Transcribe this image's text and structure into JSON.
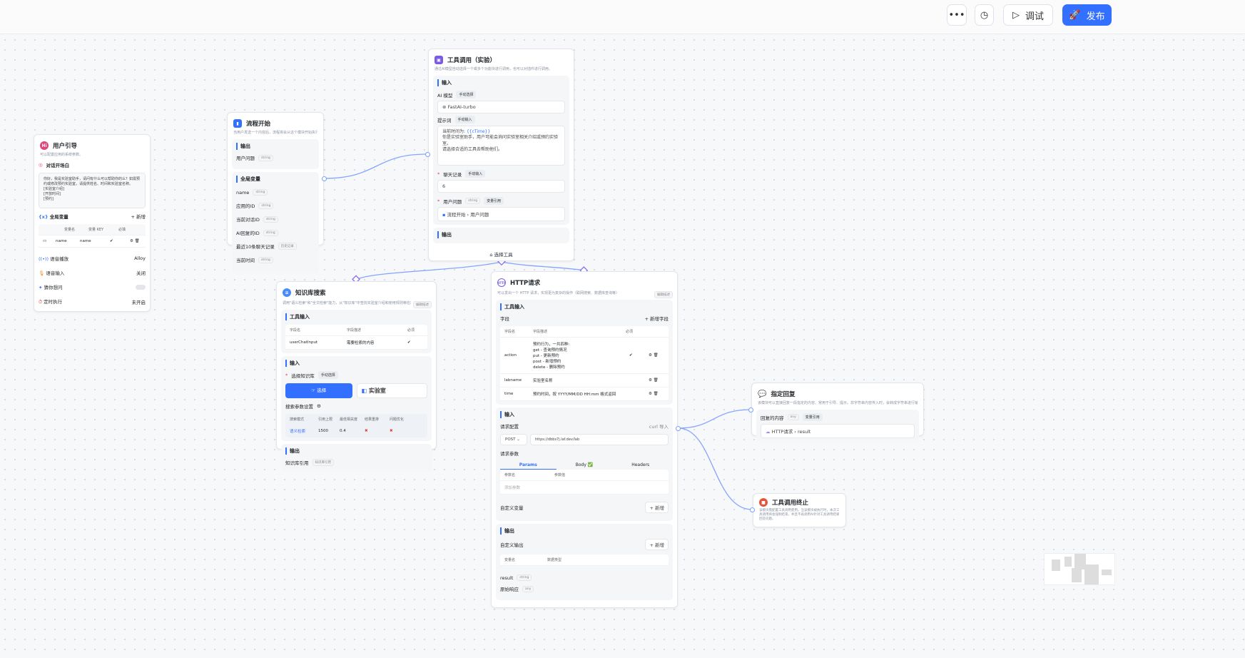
{
  "toolbar": {
    "more_icon": "ellipsis-icon",
    "history_icon": "clock-icon",
    "debug_label": "调试",
    "publish_label": "发布",
    "accent": "#3370ff"
  },
  "user_guide": {
    "title": "用户引导",
    "desc": "可以配置应用的系统参数。",
    "welcome_label": "对话开场白",
    "welcome_text": "你好，我是实验室助手，请问有什么可以帮助你的么？如需预约或修改预约实验室，请提供姓名、时间和实验室名称。\n[实验室介绍]\n[开放时间]\n[预约]",
    "globals_label": "全局变量",
    "add_label": "+ 新增",
    "cols": [
      "变量名",
      "变量 KEY",
      "必填"
    ],
    "var_name": "name",
    "var_key": "name",
    "tts_label": "语音播放",
    "tts_value": "Alloy",
    "stt_label": "语音输入",
    "stt_value": "关闭",
    "guess_label": "猜你想问",
    "timer_label": "定时执行",
    "timer_value": "未开启"
  },
  "flow_start": {
    "title": "流程开始",
    "desc": "当用户发送一个内容后，流程将会从这个模块开始执行。",
    "output_label": "输出",
    "user_q": "用户问题",
    "global_label": "全局变量",
    "vars": [
      {
        "n": "name",
        "t": "string"
      },
      {
        "n": "应用的ID",
        "t": "string"
      },
      {
        "n": "当前对话ID",
        "t": "string"
      },
      {
        "n": "AI回复的ID",
        "t": "string"
      },
      {
        "n": "最近10条聊天记录",
        "t": "历史记录"
      },
      {
        "n": "当前时间",
        "t": "string"
      }
    ]
  },
  "tool_call": {
    "title": "工具调用（实验）",
    "desc": "通过AI模型自动选择一个或多个功能块进行调用，也可以对插件进行调用。",
    "input_label": "输入",
    "model_label": "AI 模型",
    "manual_select": "手动选择",
    "model": "FastAI-turbo",
    "prompt_label": "提示词",
    "manual_input": "手动输入",
    "prompt_l1": "当前时间为: ",
    "prompt_var": "{{cTime}}",
    "prompt_rest": "你是实验室助手，用户可能会询问实验室相关介绍或预约实验室。\n请选择合适的工具去帮助他们。",
    "history_label": "聊天记录",
    "history_value": "6",
    "q_label": "用户问题",
    "var_ref": "变量引用",
    "q_ref_node": "流程开始",
    "q_ref_field": "用户问题",
    "output_label": "输出",
    "select_tool": "选择工具"
  },
  "kb": {
    "title": "知识库搜索",
    "desc": "调用\"语义检索\"和\"全文检索\"能力，从\"知识库\"中查找实验室介绍和使用规则等信息。",
    "edit_desc": "编辑描述",
    "tool_input": "工具输入",
    "cols": [
      "字段名",
      "字段描述",
      "必须"
    ],
    "field": "userChatInput",
    "field_desc": "需要检索的内容",
    "input_label": "输入",
    "select_kb": "选择知识库",
    "manual_select": "手动选择",
    "select_btn": "选择",
    "kb_name": "实验室",
    "search_params": "搜索参数设置",
    "pcols": [
      "搜索模式",
      "引用上限",
      "最低相关度",
      "结果重排",
      "问题优化"
    ],
    "pvals": [
      "语义检索",
      "1500",
      "0.4"
    ],
    "output_label": "输出",
    "kb_ref": "知识库引用",
    "kb_ref_tag": "知识库引用"
  },
  "http": {
    "title": "HTTP请求",
    "desc": "可以发出一个 HTTP 请求，实现更为复杂的操作（联网搜索、数据库查询等）",
    "edit_desc": "编辑描述",
    "tool_input": "工具输入",
    "fields_label": "字段",
    "add_field": "+ 新增字段",
    "cols": [
      "字段名",
      "字段描述",
      "必须"
    ],
    "rows": [
      {
        "n": "action",
        "d": "预约行为，一共四种:\nget - 查询预约情况\nput - 更新预约\npost - 新增预约\ndelete - 删除预约"
      },
      {
        "n": "labname",
        "d": "实验室名称"
      },
      {
        "n": "time",
        "d": "预约时间，按 YYYY/MM/DD HH:mm 格式返回"
      }
    ],
    "input_label": "输入",
    "req_cfg": "请求配置",
    "curl": "curl 导入",
    "method": "POST",
    "url": "https://dbbs7j.laf.dev/lab",
    "req_params": "请求参数",
    "tabs": [
      "Params",
      "Body ✅",
      "Headers"
    ],
    "pcols": [
      "参数名",
      "参数值"
    ],
    "add_param": "添加参数",
    "custom_var": "自定义变量",
    "add": "+ 新增",
    "output_label": "输出",
    "custom_out": "自定义输出",
    "ocols": [
      "变量名",
      "数据类型"
    ],
    "outs": [
      {
        "n": "result",
        "t": "string"
      },
      {
        "n": "原始响应",
        "t": "any"
      }
    ]
  },
  "reply": {
    "title": "指定回复",
    "desc": "该模块可以直接回复一段指定的内容。常用于引导、提示。非字符串内容传入时，会转成字符串进行输出。",
    "content_label": "回复的内容",
    "any": "any",
    "var_ref": "变量引用",
    "ref_node": "HTTP请求",
    "ref_field": "result"
  },
  "stop": {
    "title": "工具调用终止",
    "desc": "该模块需配置工具调用使用。当该模块被执行时，本次工具调用将会强制结束，并且不再调用AI针对工具调用结果回答问题。"
  }
}
